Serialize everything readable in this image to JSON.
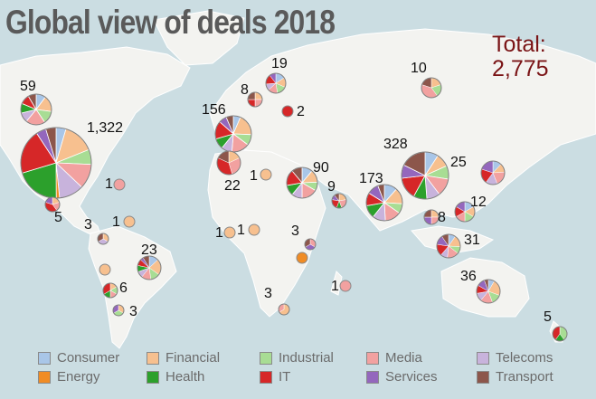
{
  "title": "Global view of deals 2018",
  "total": {
    "label": "Total:",
    "value": "2,775"
  },
  "categories": [
    {
      "name": "Consumer",
      "color": "#a9c6e8"
    },
    {
      "name": "Financial",
      "color": "#f7c08f"
    },
    {
      "name": "Industrial",
      "color": "#a8dd94"
    },
    {
      "name": "Media",
      "color": "#f2a1a0"
    },
    {
      "name": "Telecoms",
      "color": "#c8b3dc"
    },
    {
      "name": "Energy",
      "color": "#f08c25"
    },
    {
      "name": "Health",
      "color": "#2ca02c"
    },
    {
      "name": "IT",
      "color": "#d62728"
    },
    {
      "name": "Services",
      "color": "#9467bd"
    },
    {
      "name": "Transport",
      "color": "#8c564b"
    }
  ],
  "chart_data": {
    "type": "pie",
    "title": "Global view of deals 2018",
    "total": "2,775",
    "legend_position": "bottom",
    "pies": [
      {
        "region": "Canada",
        "label": "59",
        "deals": 59,
        "shares": {
          "Consumer": 6,
          "Financial": 10,
          "Industrial": 8,
          "Media": 12,
          "Telecoms": 6,
          "Health": 6,
          "IT": 6,
          "Transport": 5
        }
      },
      {
        "region": "USA",
        "label": "1,322",
        "deals": 1322,
        "shares": {
          "Consumer": 60,
          "Financial": 190,
          "Industrial": 90,
          "Media": 150,
          "Telecoms": 150,
          "Energy": 20,
          "Health": 270,
          "IT": 270,
          "Services": 60,
          "Transport": 62
        }
      },
      {
        "region": "Caribbean",
        "label": "1",
        "deals": 1,
        "shares": {
          "Media": 1
        }
      },
      {
        "region": "Mexico",
        "label": "5",
        "deals": 5,
        "shares": {
          "Financial": 1,
          "Media": 1,
          "IT": 2,
          "Services": 1
        }
      },
      {
        "region": "Colombia",
        "label": "3",
        "deals": 3,
        "shares": {
          "Financial": 1,
          "Telecoms": 1,
          "Transport": 1
        }
      },
      {
        "region": "Venezuela",
        "label": "1",
        "deals": 1,
        "shares": {
          "Financial": 1
        }
      },
      {
        "region": "Peru",
        "label": "",
        "deals": 1,
        "shares": {
          "Financial": 1
        }
      },
      {
        "region": "Brazil",
        "label": "23",
        "deals": 23,
        "shares": {
          "Consumer": 3,
          "Financial": 5,
          "Industrial": 3,
          "Media": 3,
          "Telecoms": 2,
          "Health": 2,
          "IT": 2,
          "Services": 1,
          "Transport": 2
        }
      },
      {
        "region": "Chile",
        "label": "6",
        "deals": 6,
        "shares": {
          "Financial": 1,
          "Industrial": 1,
          "Media": 1,
          "Health": 1,
          "IT": 2
        }
      },
      {
        "region": "Argentina",
        "label": "3",
        "deals": 3,
        "shares": {
          "Financial": 1,
          "Industrial": 1,
          "Services": 1
        }
      },
      {
        "region": "UK",
        "label": "156",
        "deals": 156,
        "shares": {
          "Consumer": 10,
          "Financial": 30,
          "Industrial": 15,
          "Media": 25,
          "Telecoms": 15,
          "Health": 15,
          "IT": 25,
          "Services": 11,
          "Transport": 10
        }
      },
      {
        "region": "Scandinavia",
        "label": "19",
        "deals": 19,
        "shares": {
          "Consumer": 3,
          "Financial": 3,
          "Industrial": 3,
          "Media": 3,
          "Telecoms": 2,
          "IT": 3,
          "Services": 2
        }
      },
      {
        "region": "Baltics",
        "label": "8",
        "deals": 8,
        "shares": {
          "Financial": 2,
          "Media": 2,
          "IT": 2,
          "Transport": 2
        }
      },
      {
        "region": "Russia West",
        "label": "2",
        "deals": 2,
        "shares": {
          "IT": 2
        }
      },
      {
        "region": "Russia East",
        "label": "10",
        "deals": 10,
        "shares": {
          "Financial": 2,
          "Industrial": 2,
          "Media": 4,
          "Transport": 2
        }
      },
      {
        "region": "Morocco",
        "label": "22",
        "deals": 22,
        "shares": {
          "Financial": 4,
          "Media": 6,
          "IT": 8,
          "Transport": 4
        }
      },
      {
        "region": "Algeria",
        "label": "1",
        "deals": 1,
        "shares": {
          "Financial": 1
        }
      },
      {
        "region": "Turkey",
        "label": "90",
        "deals": 90,
        "shares": {
          "Consumer": 10,
          "Financial": 12,
          "Industrial": 8,
          "Media": 15,
          "Telecoms": 10,
          "Health": 10,
          "IT": 15,
          "Transport": 10
        }
      },
      {
        "region": "Middle East",
        "label": "9",
        "deals": 9,
        "shares": {
          "Financial": 2,
          "Media": 2,
          "Health": 1,
          "IT": 2,
          "Services": 1,
          "Transport": 1
        }
      },
      {
        "region": "India",
        "label": "173",
        "deals": 173,
        "shares": {
          "Consumer": 20,
          "Financial": 25,
          "Industrial": 15,
          "Media": 25,
          "Telecoms": 20,
          "Health": 20,
          "IT": 20,
          "Services": 18,
          "Transport": 10
        }
      },
      {
        "region": "China",
        "label": "328",
        "deals": 328,
        "shares": {
          "Consumer": 30,
          "Financial": 30,
          "Industrial": 30,
          "Media": 40,
          "Telecoms": 30,
          "Health": 30,
          "IT": 50,
          "Services": 30,
          "Transport": 58
        }
      },
      {
        "region": "Japan",
        "label": "25",
        "deals": 25,
        "shares": {
          "Consumer": 3,
          "Financial": 3,
          "Media": 5,
          "Telecoms": 4,
          "IT": 5,
          "Services": 5
        }
      },
      {
        "region": "Southeast Asia",
        "label": "12",
        "deals": 12,
        "shares": {
          "Consumer": 2,
          "Financial": 2,
          "Industrial": 2,
          "Media": 2,
          "IT": 2,
          "Services": 2
        }
      },
      {
        "region": "Thailand",
        "label": "8",
        "deals": 8,
        "shares": {
          "Financial": 2,
          "Media": 2,
          "Services": 2,
          "Transport": 2
        }
      },
      {
        "region": "Indonesia",
        "label": "31",
        "deals": 31,
        "shares": {
          "Consumer": 3,
          "Financial": 5,
          "Industrial": 3,
          "Media": 5,
          "Telecoms": 3,
          "IT": 5,
          "Services": 4,
          "Transport": 3
        }
      },
      {
        "region": "Nigeria",
        "label": "1",
        "deals": 1,
        "shares": {
          "Financial": 1
        }
      },
      {
        "region": "Ghana",
        "label": "1",
        "deals": 1,
        "shares": {
          "Financial": 1
        }
      },
      {
        "region": "Kenya",
        "label": "3",
        "deals": 3,
        "shares": {
          "Media": 1,
          "Services": 1,
          "Transport": 1
        }
      },
      {
        "region": "Tanzania",
        "label": "",
        "deals": 1,
        "shares": {
          "Energy": 1
        }
      },
      {
        "region": "South Africa",
        "label": "3",
        "deals": 3,
        "shares": {
          "Financial": 2,
          "Media": 1
        }
      },
      {
        "region": "Madagascar",
        "label": "1",
        "deals": 1,
        "shares": {
          "Media": 1
        }
      },
      {
        "region": "Australia",
        "label": "36",
        "deals": 36,
        "shares": {
          "Consumer": 3,
          "Financial": 8,
          "Industrial": 5,
          "Media": 6,
          "Telecoms": 4,
          "IT": 4,
          "Services": 4,
          "Transport": 2
        }
      },
      {
        "region": "New Zealand",
        "label": "5",
        "deals": 5,
        "shares": {
          "Industrial": 2,
          "Health": 1,
          "IT": 2
        }
      }
    ]
  }
}
